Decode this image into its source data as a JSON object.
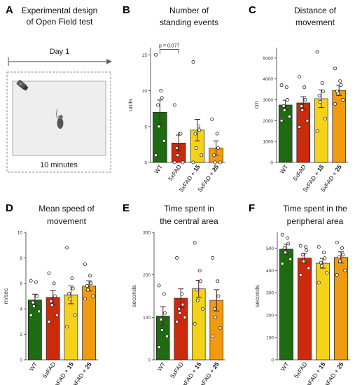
{
  "panelA": {
    "letter": "A",
    "title_line1": "Experimental design",
    "title_line2": "of Open Field test",
    "timeline_label": "Day 1",
    "duration_label": "10 minutes"
  },
  "colors": {
    "WT": "#1e6b12",
    "5xFAD": "#cc2a0c",
    "5xFAD + 15": "#f5d21a",
    "5xFAD + 25": "#f09a10"
  },
  "chart_data": [
    {
      "type": "bar",
      "letter": "B",
      "title": [
        "Number of",
        "standing events"
      ],
      "ylabel": "units",
      "ylim": [
        0,
        16
      ],
      "yticks": [
        0,
        5,
        10,
        15
      ],
      "categories": [
        "WT",
        "5xFAD",
        "5xFAD + 15",
        "5xFAD + 25"
      ],
      "values": [
        7.0,
        2.7,
        4.5,
        2.0
      ],
      "errors": [
        1.7,
        1.1,
        1.5,
        1.0
      ],
      "points": [
        [
          15,
          10,
          9,
          8,
          5,
          3,
          1
        ],
        [
          8,
          4,
          4,
          2,
          1,
          0,
          0
        ],
        [
          14,
          5,
          4.5,
          4,
          2,
          1,
          0
        ],
        [
          6,
          4,
          2,
          1,
          0,
          0
        ]
      ],
      "annotation": "p = 0.077"
    },
    {
      "type": "bar",
      "letter": "C",
      "title": [
        "Distance of",
        "movement"
      ],
      "ylabel": "cm",
      "ylim": [
        0,
        5500
      ],
      "yticks": [
        0,
        1000,
        2000,
        3000,
        4000,
        5000
      ],
      "categories": [
        "WT",
        "5xFAD",
        "5xFAD + 15",
        "5xFAD + 25"
      ],
      "values": [
        2750,
        2850,
        3050,
        3450
      ],
      "errors": [
        230,
        300,
        420,
        240
      ],
      "points": [
        [
          3700,
          3600,
          3000,
          2700,
          2500,
          2200,
          2000
        ],
        [
          4100,
          3600,
          3000,
          2700,
          2500,
          2000,
          1700
        ],
        [
          5300,
          3800,
          3400,
          3200,
          2900,
          2100,
          1500
        ],
        [
          4500,
          3900,
          3700,
          3400,
          3300,
          3000,
          2800
        ]
      ]
    },
    {
      "type": "bar",
      "letter": "D",
      "title": [
        "Mean speed of",
        "movement"
      ],
      "ylabel": "m/sec",
      "ylim": [
        0,
        10
      ],
      "yticks": [
        0,
        2,
        4,
        6,
        8,
        10
      ],
      "categories": [
        "WT",
        "5xFAD",
        "5xFAD + 15",
        "5xFAD + 25"
      ],
      "values": [
        4.7,
        4.9,
        5.1,
        5.8
      ],
      "errors": [
        0.45,
        0.55,
        0.7,
        0.4
      ],
      "points": [
        [
          6.2,
          6.1,
          5.0,
          4.5,
          4.2,
          3.8,
          3.5
        ],
        [
          6.8,
          6.0,
          5.0,
          4.6,
          4.3,
          3.5,
          3.0
        ],
        [
          8.8,
          6.4,
          5.6,
          5.2,
          4.8,
          3.5,
          2.6
        ],
        [
          7.5,
          6.6,
          6.0,
          5.8,
          5.5,
          5.0,
          4.8
        ]
      ]
    },
    {
      "type": "bar",
      "letter": "E",
      "title": [
        "Time spent in",
        "the central area"
      ],
      "ylabel": "seconds",
      "ylim": [
        0,
        300
      ],
      "yticks": [
        0,
        100,
        200,
        300
      ],
      "categories": [
        "WT",
        "5xFAD",
        "5xFAD + 15",
        "5xFAD + 25"
      ],
      "values": [
        103,
        145,
        167,
        140
      ],
      "errors": [
        22,
        22,
        20,
        25
      ],
      "points": [
        [
          175,
          155,
          110,
          95,
          70,
          55,
          30
        ],
        [
          240,
          155,
          130,
          120,
          110,
          100,
          90
        ],
        [
          275,
          210,
          185,
          165,
          140,
          120,
          85
        ],
        [
          240,
          185,
          150,
          120,
          100,
          75,
          55
        ]
      ]
    },
    {
      "type": "bar",
      "letter": "F",
      "title": [
        "Time spent in the",
        "peripheral area"
      ],
      "ylabel": "seconds",
      "ylim": [
        0,
        570
      ],
      "yticks": [
        0,
        100,
        200,
        300,
        400,
        500
      ],
      "categories": [
        "WT",
        "5xFAD",
        "5xFAD + 15",
        "5xFAD + 25"
      ],
      "values": [
        495,
        455,
        432,
        458
      ],
      "errors": [
        22,
        22,
        22,
        25
      ],
      "points": [
        [
          560,
          545,
          520,
          500,
          480,
          450,
          430
        ],
        [
          510,
          505,
          490,
          470,
          440,
          410,
          380
        ],
        [
          505,
          480,
          455,
          435,
          420,
          390,
          345
        ],
        [
          525,
          500,
          470,
          460,
          440,
          400,
          380
        ]
      ]
    }
  ]
}
